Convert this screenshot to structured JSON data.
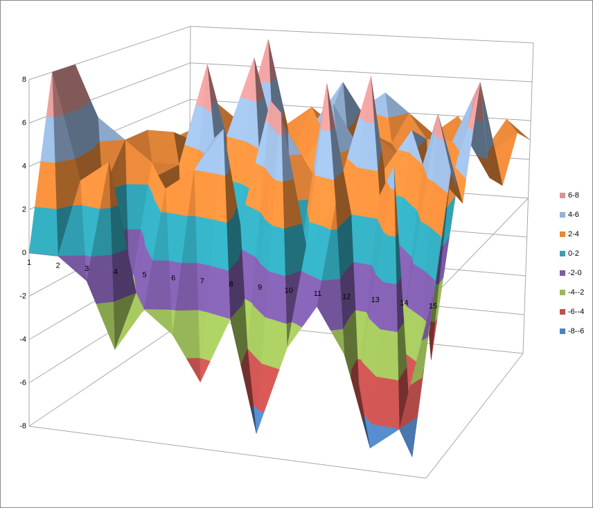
{
  "chart_data": {
    "type": "surface3d",
    "categories": [
      "1",
      "2",
      "3",
      "4",
      "5",
      "6",
      "7",
      "8",
      "9",
      "10",
      "11",
      "12",
      "13",
      "14",
      "15"
    ],
    "series": [
      {
        "values": [
          0,
          0,
          -1,
          -4,
          -2,
          -3,
          -5,
          -2,
          -7,
          -3,
          -1,
          -3,
          -7,
          -6,
          0
        ]
      },
      {
        "values": [
          8,
          3,
          4,
          -2,
          3,
          4,
          6,
          -4,
          7,
          1,
          3,
          -5,
          5,
          -8,
          5
        ]
      },
      {
        "values": [
          8,
          2,
          -3,
          3,
          -4,
          5,
          1,
          7,
          -2,
          8,
          2,
          3,
          -3,
          7,
          3
        ]
      },
      {
        "values": [
          5,
          4,
          3,
          3,
          8,
          -4,
          3,
          5,
          3,
          3,
          8,
          -2,
          4,
          3,
          8
        ]
      },
      {
        "values": [
          3,
          4,
          4,
          -3,
          4,
          8,
          3,
          -4,
          6,
          4,
          3,
          5,
          -6,
          5,
          3
        ]
      },
      {
        "values": [
          2,
          3,
          3,
          4,
          3,
          4,
          2,
          4,
          3,
          4,
          3,
          4,
          4,
          7,
          2
        ]
      },
      {
        "values": [
          -1,
          3,
          4,
          3,
          8,
          2,
          4,
          6,
          2,
          3,
          4,
          3,
          4,
          3,
          4
        ]
      },
      {
        "values": [
          2,
          4,
          3,
          4,
          3,
          4,
          3,
          4,
          5,
          4,
          3,
          4,
          2,
          4,
          3
        ]
      }
    ],
    "zlim": [
      -8,
      8
    ],
    "zticks": [
      -8,
      -6,
      -4,
      -2,
      0,
      2,
      4,
      6,
      8
    ],
    "legend_position": "right",
    "bands": [
      {
        "label": "6-8",
        "color": "#d99594"
      },
      {
        "label": "4-6",
        "color": "#95b3d7"
      },
      {
        "label": "2-4",
        "color": "#e8883a"
      },
      {
        "label": "0-2",
        "color": "#31a3b5"
      },
      {
        "label": "-2-0",
        "color": "#7b5ba6"
      },
      {
        "label": "-4--2",
        "color": "#9bbb59"
      },
      {
        "label": "-6--4",
        "color": "#c0504d"
      },
      {
        "label": "-8--6",
        "color": "#4f81bd"
      }
    ]
  }
}
